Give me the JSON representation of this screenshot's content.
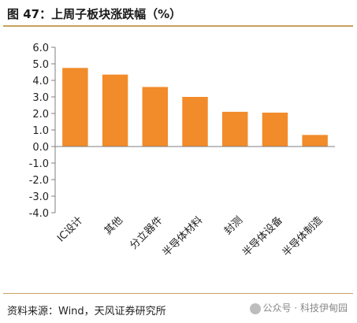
{
  "header": {
    "title": "图 47：上周子板块涨跌幅（%）"
  },
  "footer": {
    "source": "资料来源：Wind，天风证券研究所",
    "watermark": "公众号 · 科技伊甸园"
  },
  "colors": {
    "bar": "#f28b2a",
    "title_rule": "#c7a25f",
    "axis": "#7f7f7f"
  },
  "chart_data": {
    "type": "bar",
    "title": "图 47：上周子板块涨跌幅（%）",
    "categories": [
      "IC设计",
      "其他",
      "分立器件",
      "半导体材料",
      "封测",
      "半导体设备",
      "半导体制造"
    ],
    "values": [
      4.75,
      4.35,
      3.6,
      3.0,
      2.1,
      2.05,
      0.7
    ],
    "ylim": [
      -4.0,
      6.0
    ],
    "yticks": [
      "6.0",
      "5.0",
      "4.0",
      "3.0",
      "2.0",
      "1.0",
      "0.0",
      "-1.0",
      "-2.0",
      "-3.0",
      "-4.0"
    ],
    "grid": false,
    "legend": "none"
  }
}
